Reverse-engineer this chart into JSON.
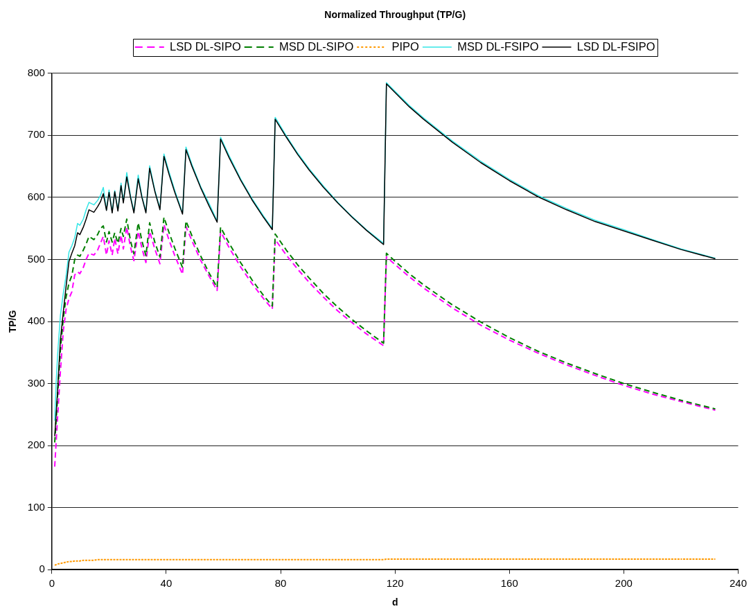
{
  "chart_data": {
    "type": "line",
    "title": "Normalized Throughput (TP/G)",
    "xlabel": "d",
    "ylabel": "TP/G",
    "x": [
      1,
      1.5,
      2,
      3,
      4,
      5,
      6,
      7,
      8,
      9,
      9.8,
      11,
      12,
      13,
      14.7,
      16,
      17,
      18,
      19.1,
      20,
      21.1,
      22,
      23.1,
      24.2,
      25,
      26.2,
      27.5,
      28.7,
      30.2,
      31.5,
      32.9,
      34.2,
      36,
      37.8,
      39.2,
      41,
      43,
      45.7,
      46.9,
      49,
      52,
      55,
      57.8,
      59,
      62,
      66,
      70,
      74,
      77.1,
      78.1,
      82,
      86,
      90,
      95,
      100,
      105,
      110,
      116,
      117,
      120,
      125,
      130,
      140,
      150,
      160,
      170,
      180,
      190,
      200,
      210,
      220,
      232
    ],
    "series": [
      {
        "name": "LSD DL-SIPO",
        "color": "#ff00ff",
        "line_style": "dashed",
        "values": [
          166,
          205,
          245,
          320,
          385,
          420,
          437,
          448,
          475,
          480,
          477,
          487,
          500,
          510,
          507,
          515,
          526,
          537,
          507,
          530,
          507,
          534,
          509,
          539,
          517,
          552,
          520,
          498,
          545,
          518,
          495,
          545,
          517,
          493,
          556,
          531,
          506,
          476,
          553,
          530,
          499,
          473,
          450,
          545,
          519,
          488,
          461,
          437,
          420,
          532,
          507,
          484,
          463,
          439,
          417,
          398,
          380,
          361,
          504,
          492,
          472,
          454,
          422,
          394,
          370,
          349,
          330,
          313,
          297,
          283,
          271,
          257
        ]
      },
      {
        "name": "MSD DL-SIPO",
        "color": "#007f00",
        "line_style": "dashed",
        "values": [
          205,
          240,
          280,
          355,
          405,
          440,
          462,
          474,
          500,
          507,
          505,
          515,
          525,
          537,
          532,
          540,
          550,
          554,
          528,
          545,
          528,
          543,
          526,
          550,
          537,
          565,
          530,
          509,
          559,
          530,
          506,
          559,
          528,
          504,
          568,
          543,
          518,
          487,
          562,
          538,
          506,
          478,
          455,
          552,
          526,
          495,
          467,
          442,
          425,
          541,
          515,
          491,
          470,
          445,
          423,
          403,
          385,
          365,
          510,
          497,
          477,
          459,
          427,
          399,
          374,
          352,
          333,
          316,
          300,
          286,
          273,
          259
        ]
      },
      {
        "name": "PIPO",
        "color": "#ff9900",
        "line_style": "dotted",
        "values": [
          7,
          8,
          9,
          10,
          11,
          12,
          13,
          13,
          14,
          14,
          14,
          15,
          15,
          15,
          15,
          16,
          16,
          16,
          16,
          16,
          16,
          16,
          16,
          16,
          16,
          16,
          16,
          16,
          16,
          16,
          16,
          16,
          16,
          16,
          16,
          16,
          16,
          16,
          16,
          16,
          16,
          16,
          16,
          16,
          16,
          16,
          16,
          16,
          16,
          16,
          16,
          16,
          16,
          16,
          16,
          16,
          16,
          16,
          17,
          17,
          17,
          17,
          17,
          17,
          17,
          17,
          17,
          17,
          17,
          17,
          17,
          17
        ]
      },
      {
        "name": "MSD DL-FSIPO",
        "color": "#33e6e6",
        "line_style": "solid",
        "values": [
          240,
          300,
          345,
          410,
          445,
          474,
          512,
          522,
          535,
          558,
          555,
          565,
          580,
          592,
          588,
          595,
          603,
          616,
          580,
          612,
          577,
          611,
          580,
          623,
          593,
          640,
          603,
          577,
          636,
          602,
          577,
          651,
          612,
          582,
          670,
          641,
          611,
          575,
          681,
          653,
          618,
          590,
          562,
          697,
          667,
          630,
          598,
          570,
          550,
          729,
          699,
          671,
          646,
          618,
          592,
          569,
          548,
          526,
          785,
          771,
          748,
          728,
          691,
          658,
          629,
          603,
          582,
          563,
          548,
          532,
          517,
          502
        ]
      },
      {
        "name": "LSD DL-FSIPO",
        "color": "#000000",
        "line_style": "solid",
        "values": [
          215,
          250,
          288,
          370,
          415,
          457,
          497,
          510,
          522,
          543,
          540,
          552,
          565,
          580,
          576,
          585,
          593,
          606,
          579,
          608,
          575,
          609,
          578,
          619,
          591,
          633,
          600,
          575,
          630,
          600,
          575,
          647,
          610,
          580,
          666,
          637,
          608,
          573,
          677,
          650,
          616,
          586,
          560,
          694,
          664,
          628,
          596,
          568,
          548,
          726,
          697,
          669,
          644,
          616,
          591,
          568,
          547,
          524,
          783,
          769,
          746,
          726,
          689,
          656,
          627,
          601,
          580,
          561,
          546,
          531,
          516,
          501
        ]
      }
    ],
    "xlim": [
      0,
      240
    ],
    "xticks": [
      0,
      40,
      80,
      120,
      160,
      200,
      240
    ],
    "ylim": [
      0,
      800
    ],
    "yticks": [
      0,
      100,
      200,
      300,
      400,
      500,
      600,
      700,
      800
    ],
    "grid": "y",
    "legend": "top"
  }
}
